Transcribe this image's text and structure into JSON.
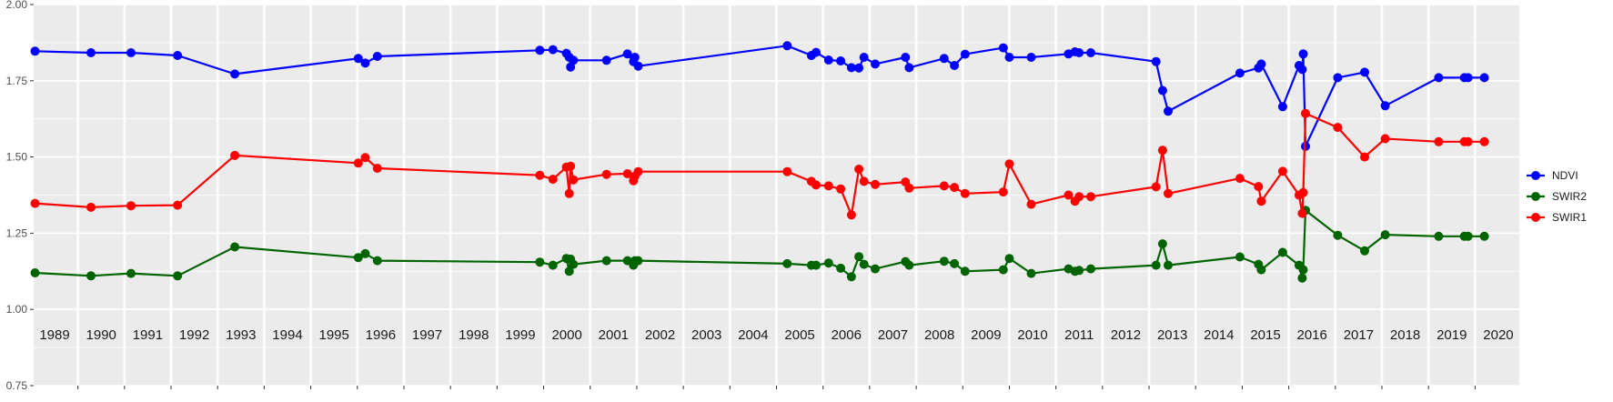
{
  "chart_data": {
    "type": "line",
    "title": "",
    "xlabel": "",
    "ylabel": "",
    "ylim": [
      0.75,
      2.0
    ],
    "xlim": [
      1988.55,
      2020.45
    ],
    "y_ticks": [
      "0.75",
      "1.00",
      "1.25",
      "1.50",
      "1.75",
      "2.00"
    ],
    "year_labels": [
      "1989",
      "1990",
      "1991",
      "1992",
      "1993",
      "1994",
      "1995",
      "1996",
      "1997",
      "1998",
      "1999",
      "2000",
      "2001",
      "2002",
      "2003",
      "2004",
      "2005",
      "2006",
      "2007",
      "2008",
      "2009",
      "2010",
      "2011",
      "2012",
      "2013",
      "2014",
      "2015",
      "2016",
      "2017",
      "2018",
      "2019",
      "2020"
    ],
    "grid": true,
    "legend_position": "right",
    "x": [
      1988.58,
      1989.78,
      1990.64,
      1991.64,
      1992.87,
      1995.52,
      1995.67,
      1995.93,
      1999.42,
      1999.7,
      1999.99,
      2000.05,
      2000.08,
      2000.14,
      2000.85,
      2001.3,
      2001.43,
      2001.46,
      2001.53,
      2004.73,
      2005.25,
      2005.35,
      2005.62,
      2005.88,
      2006.11,
      2006.27,
      2006.38,
      2006.62,
      2007.27,
      2007.35,
      2008.1,
      2008.32,
      2008.55,
      2009.37,
      2009.5,
      2009.97,
      2010.77,
      2010.91,
      2011.0,
      2011.25,
      2012.65,
      2012.79,
      2012.91,
      2014.45,
      2014.85,
      2014.91,
      2015.37,
      2015.72,
      2015.79,
      2015.81,
      2015.86,
      2016.55,
      2017.13,
      2017.57,
      2018.72,
      2019.27,
      2019.35,
      2019.7
    ],
    "series": [
      {
        "name": "NDVI",
        "color": "#0000ff",
        "values": [
          1.847,
          1.842,
          1.842,
          1.833,
          1.772,
          1.823,
          1.808,
          1.83,
          1.85,
          1.852,
          1.84,
          1.827,
          1.795,
          1.817,
          1.817,
          1.838,
          1.813,
          1.827,
          1.798,
          1.865,
          1.833,
          1.843,
          1.818,
          1.815,
          1.793,
          1.792,
          1.827,
          1.805,
          1.827,
          1.793,
          1.823,
          1.8,
          1.837,
          1.858,
          1.827,
          1.827,
          1.838,
          1.845,
          1.842,
          1.842,
          1.813,
          1.718,
          1.65,
          1.775,
          1.792,
          1.805,
          1.665,
          1.8,
          1.787,
          1.838,
          1.535,
          1.76,
          1.778,
          1.668,
          1.76,
          1.76,
          1.76,
          1.76
        ]
      },
      {
        "name": "SWIR2",
        "color": "#006400",
        "values": [
          1.12,
          1.11,
          1.118,
          1.11,
          1.205,
          1.17,
          1.183,
          1.16,
          1.155,
          1.145,
          1.167,
          1.125,
          1.165,
          1.148,
          1.16,
          1.16,
          1.145,
          1.16,
          1.16,
          1.15,
          1.145,
          1.145,
          1.152,
          1.135,
          1.107,
          1.173,
          1.148,
          1.133,
          1.157,
          1.145,
          1.158,
          1.15,
          1.125,
          1.13,
          1.167,
          1.118,
          1.133,
          1.125,
          1.128,
          1.133,
          1.145,
          1.215,
          1.145,
          1.172,
          1.148,
          1.13,
          1.187,
          1.145,
          1.103,
          1.13,
          1.325,
          1.243,
          1.192,
          1.245,
          1.24,
          1.24,
          1.24,
          1.24
        ]
      },
      {
        "name": "SWIR1",
        "color": "#ff0000",
        "values": [
          1.348,
          1.335,
          1.34,
          1.342,
          1.505,
          1.48,
          1.498,
          1.463,
          1.44,
          1.427,
          1.467,
          1.38,
          1.47,
          1.425,
          1.443,
          1.445,
          1.422,
          1.437,
          1.452,
          1.452,
          1.42,
          1.408,
          1.405,
          1.395,
          1.31,
          1.46,
          1.42,
          1.41,
          1.418,
          1.398,
          1.405,
          1.4,
          1.38,
          1.385,
          1.477,
          1.345,
          1.375,
          1.355,
          1.37,
          1.37,
          1.402,
          1.522,
          1.38,
          1.43,
          1.403,
          1.355,
          1.453,
          1.375,
          1.315,
          1.383,
          1.643,
          1.597,
          1.5,
          1.56,
          1.55,
          1.55,
          1.55,
          1.55
        ]
      }
    ]
  }
}
